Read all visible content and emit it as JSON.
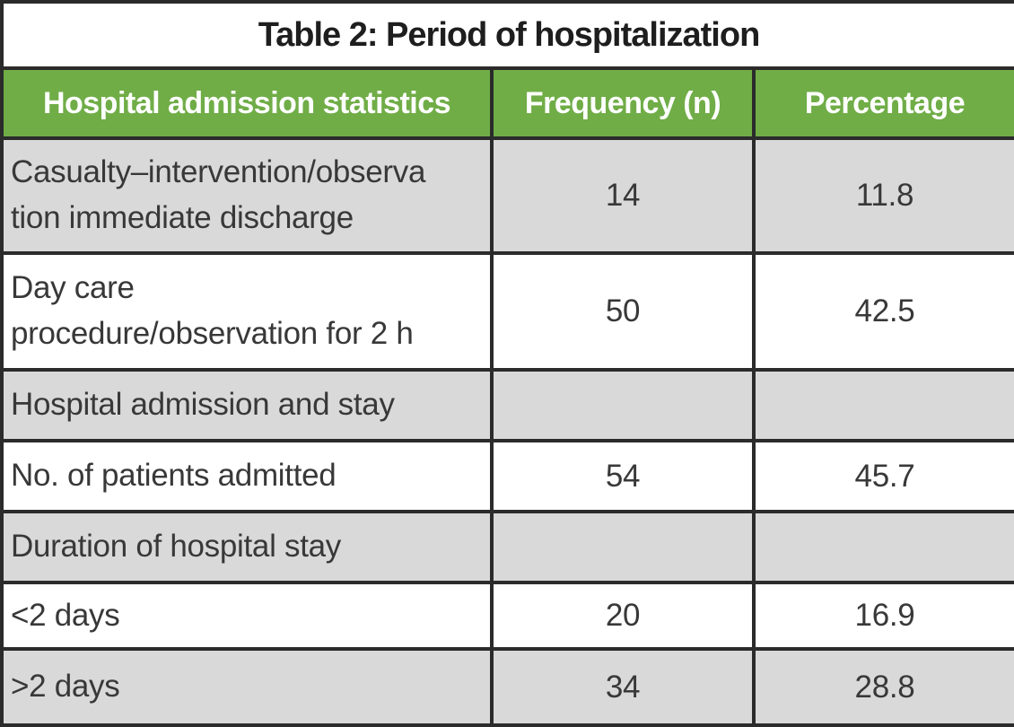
{
  "title": "Table 2: Period of hospitalization",
  "table": {
    "columns": [
      "Hospital admission statistics",
      "Frequency (n)",
      "Percentage"
    ],
    "rows": [
      {
        "label": "Casualty–intervention/observa\ntion immediate discharge",
        "frequency": "14",
        "percentage": "11.8",
        "shaded": true
      },
      {
        "label": "Day care\nprocedure/observation for 2 h",
        "frequency": "50",
        "percentage": "42.5",
        "shaded": false
      },
      {
        "label": "Hospital admission and stay",
        "frequency": "",
        "percentage": "",
        "shaded": true
      },
      {
        "label": "No. of patients admitted",
        "frequency": "54",
        "percentage": "45.7",
        "shaded": false
      },
      {
        "label": "Duration of hospital stay",
        "frequency": "",
        "percentage": "",
        "shaded": true
      },
      {
        "label": "<2 days",
        "frequency": "20",
        "percentage": "16.9",
        "shaded": false
      },
      {
        "label": ">2 days",
        "frequency": "34",
        "percentage": "28.8",
        "shaded": true
      }
    ]
  },
  "colors": {
    "header_bg": "#70ad47",
    "header_text": "#ffffff",
    "shaded_row_bg": "#d9d9d9",
    "plain_row_bg": "#ffffff",
    "border": "#2b2b2b",
    "title_text": "#1e1e1e",
    "body_text": "#383838"
  }
}
